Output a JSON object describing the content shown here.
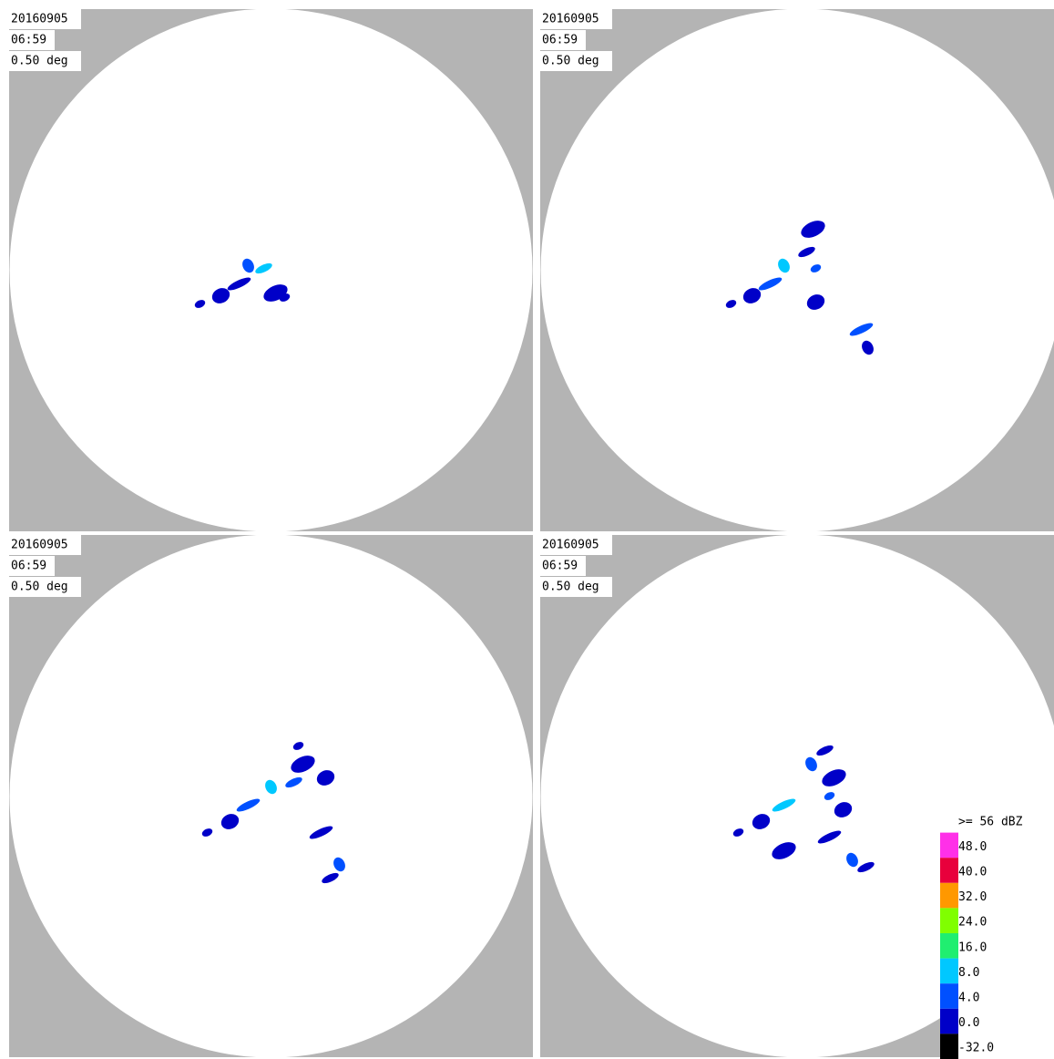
{
  "panels": [
    {
      "date": "20160905",
      "time": "06:59",
      "elevation": "0.50 deg"
    },
    {
      "date": "20160905",
      "time": "06:59",
      "elevation": "0.50 deg"
    },
    {
      "date": "20160905",
      "time": "06:59",
      "elevation": "0.50 deg"
    },
    {
      "date": "20160905",
      "time": "06:59",
      "elevation": "0.50 deg"
    }
  ],
  "legend": [
    {
      "label": ">= 56 dBZ",
      "color": "#ffffff"
    },
    {
      "label": "48.0",
      "color": "#ff30e8"
    },
    {
      "label": "40.0",
      "color": "#e8003c"
    },
    {
      "label": "32.0",
      "color": "#ff9800"
    },
    {
      "label": "24.0",
      "color": "#80ff00"
    },
    {
      "label": "16.0",
      "color": "#20ee70"
    },
    {
      "label": "8.0",
      "color": "#00c8ff"
    },
    {
      "label": "4.0",
      "color": "#0050ff"
    },
    {
      "label": "0.0",
      "color": "#0000c8"
    },
    {
      "label": "-32.0",
      "color": "#000000"
    }
  ]
}
